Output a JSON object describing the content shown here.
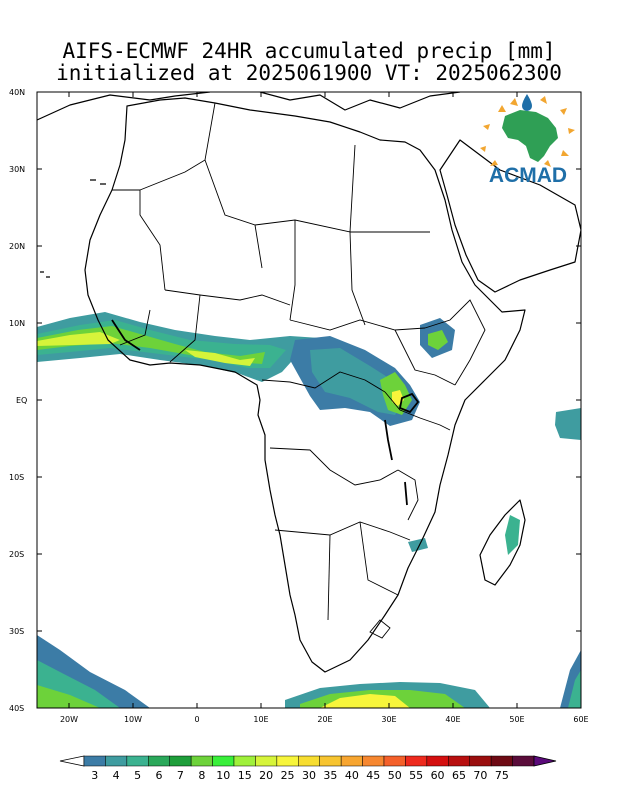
{
  "header": {
    "title_line1": "AIFS-ECMWF 24HR accumulated precip [mm]",
    "title_line2": "initialized at 2025061900 VT: 2025062300"
  },
  "logo": {
    "text": "ACMAD"
  },
  "axes": {
    "lat_ticks": [
      "40N",
      "30N",
      "20N",
      "10N",
      "EQ",
      "10S",
      "20S",
      "30S",
      "40S"
    ],
    "lon_ticks": [
      "20W",
      "10W",
      "0",
      "10E",
      "20E",
      "30E",
      "40E",
      "50E",
      "60E"
    ],
    "lon_range": [
      -25,
      60
    ],
    "lat_range": [
      -40,
      40
    ]
  },
  "colorbar": {
    "labels": [
      "3",
      "4",
      "5",
      "6",
      "7",
      "8",
      "10",
      "15",
      "20",
      "25",
      "30",
      "35",
      "40",
      "45",
      "50",
      "55",
      "60",
      "65",
      "70",
      "75"
    ],
    "colors": [
      "#3c7ca6",
      "#3f9ca0",
      "#3bb290",
      "#2aa85a",
      "#1e9e3a",
      "#6dd23a",
      "#39ef3a",
      "#9ff03a",
      "#d6f43a",
      "#f7f53b",
      "#f7dd30",
      "#f7c430",
      "#f7a530",
      "#f68730",
      "#f4602a",
      "#ee2a1e",
      "#d40f0f",
      "#b80f0f",
      "#9a0e0e",
      "#6e0a14",
      "#5a0c3a"
    ],
    "under_color": "#ffffff",
    "over_color": "#5b0a7a"
  }
}
